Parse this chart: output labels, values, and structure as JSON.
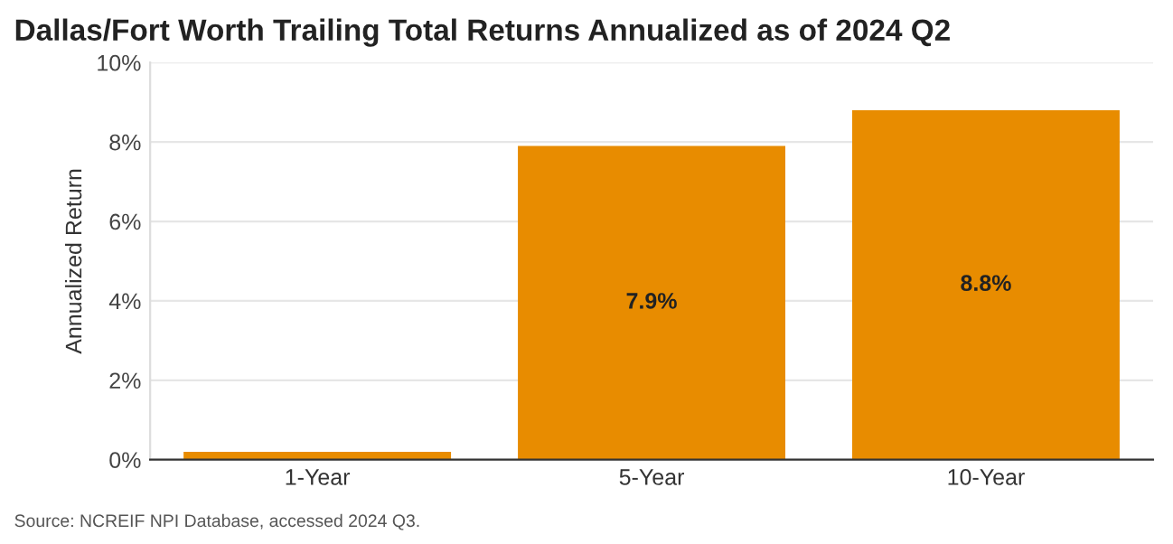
{
  "chart_data": {
    "type": "bar",
    "title": "Dallas/Fort Worth Trailing Total Returns Annualized as of 2024 Q2",
    "ylabel": "Annualized Return",
    "categories": [
      "1-Year",
      "5-Year",
      "10-Year"
    ],
    "values": [
      0.2,
      7.9,
      8.8
    ],
    "color": "#e88c00",
    "value_labels": [
      null,
      "7.9%",
      "8.8%"
    ],
    "ylim": [
      0,
      10
    ],
    "yticks": [
      {
        "value": 0,
        "label": "0%"
      },
      {
        "value": 2,
        "label": "2%"
      },
      {
        "value": 4,
        "label": "4%"
      },
      {
        "value": 6,
        "label": "6%"
      },
      {
        "value": 8,
        "label": "8%"
      },
      {
        "value": 10,
        "label": "10%"
      }
    ],
    "grid": "y",
    "annotations": [
      "Source: NCREIF NPI Database, accessed 2024 Q3."
    ]
  }
}
